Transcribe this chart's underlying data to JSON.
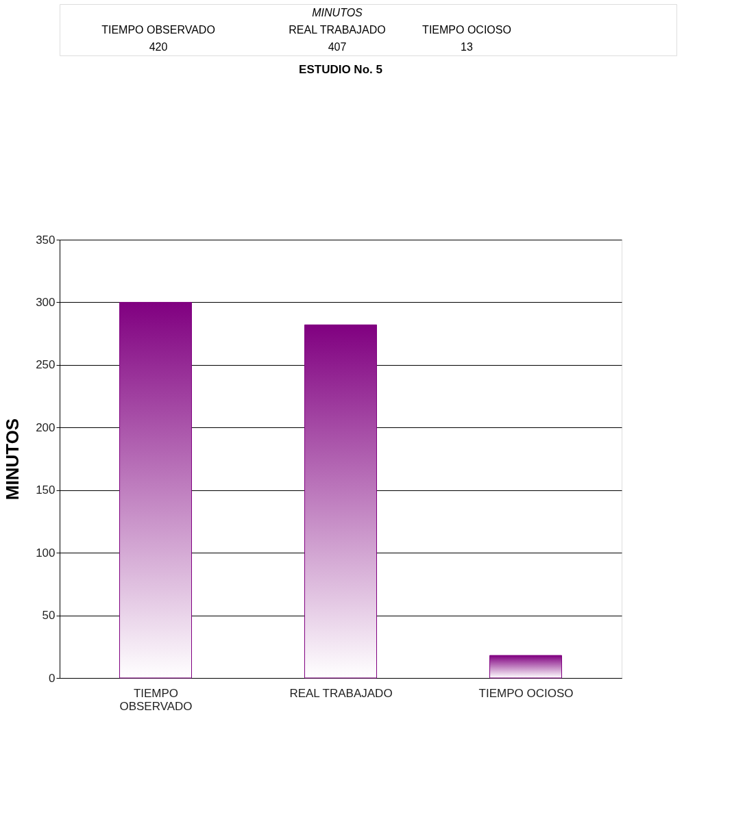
{
  "chart_data": {
    "type": "bar",
    "title": "ESTUDIO No. 5",
    "ylabel": "MINUTOS",
    "categories": [
      "TIEMPO OBSERVADO",
      "REAL TRABAJADO",
      "TIEMPO OCIOSO"
    ],
    "values": [
      300,
      282,
      18
    ],
    "color": "#800080",
    "ylim": [
      0,
      350
    ],
    "yticks": [
      0,
      50,
      100,
      150,
      200,
      250,
      300,
      350
    ],
    "grid": "y",
    "legend": false,
    "annotations": [
      "MINUTOS",
      "TIEMPO OBSERVADO",
      "REAL TRABAJADO",
      "TIEMPO OCIOSO",
      "420",
      "407",
      "13"
    ]
  }
}
